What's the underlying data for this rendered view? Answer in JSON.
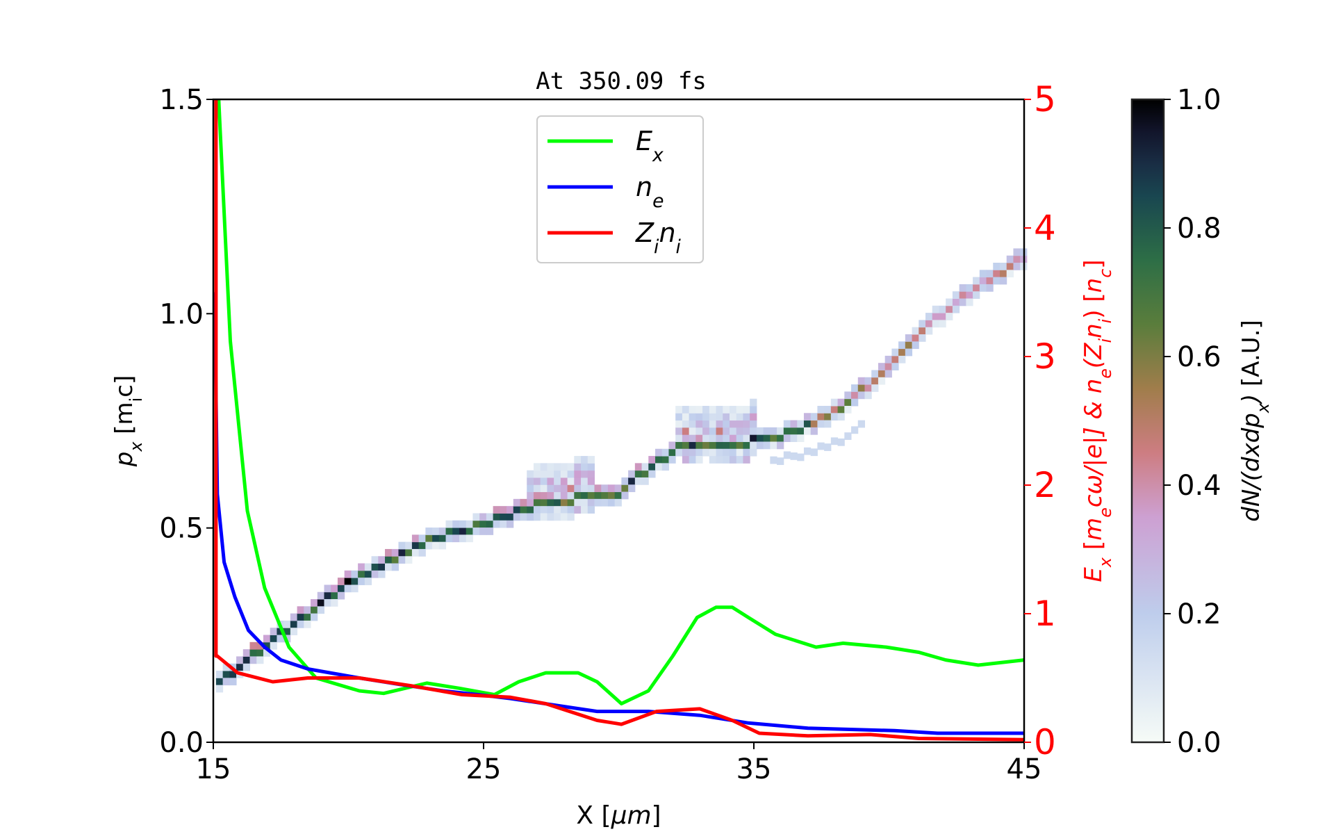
{
  "chart_data": {
    "type": "heatmap",
    "title": "At 350.09 fs",
    "xlabel": [
      {
        "t": "X  [",
        "i": false
      },
      {
        "t": "μm",
        "i": true
      },
      {
        "t": "]",
        "i": false
      }
    ],
    "ylabel": [
      {
        "t": "p",
        "i": true
      },
      {
        "t": "x",
        "i": true,
        "sub": true
      },
      {
        "t": "  [m"
      },
      {
        "t": "i",
        "sub": true
      },
      {
        "t": "c]"
      }
    ],
    "y2label": [
      {
        "t": "E",
        "i": true
      },
      {
        "t": "x",
        "i": true,
        "sub": true
      },
      {
        "t": "  ["
      },
      {
        "t": "m",
        "i": true
      },
      {
        "t": "e",
        "i": true,
        "sub": true
      },
      {
        "t": "cω/|e|]  &  ",
        "i": true
      },
      {
        "t": "n",
        "i": true
      },
      {
        "t": "e",
        "i": true,
        "sub": true
      },
      {
        "t": "(",
        "i": true
      },
      {
        "t": "Z",
        "i": true
      },
      {
        "t": "i",
        "i": true,
        "sub": true
      },
      {
        "t": "n",
        "i": true
      },
      {
        "t": "i",
        "i": true,
        "sub": true
      },
      {
        "t": ")  [",
        "i": false
      },
      {
        "t": "n",
        "i": true
      },
      {
        "t": "c",
        "i": true,
        "sub": true
      },
      {
        "t": "]"
      }
    ],
    "colorbar_label": [
      {
        "t": "dN/(dxdp",
        "i": true
      },
      {
        "t": "x",
        "i": true,
        "sub": true
      },
      {
        "t": ")",
        "i": true
      },
      {
        "t": "  [A.U.]"
      }
    ],
    "xlim": [
      15,
      45
    ],
    "ylim": [
      0,
      1.5
    ],
    "y2lim": [
      0,
      5
    ],
    "clim": [
      0,
      1
    ],
    "xticks": [
      "15",
      "25",
      "35",
      "45"
    ],
    "yticks": [
      "0.0",
      "0.5",
      "1.0",
      "1.5"
    ],
    "y2ticks": [
      "0",
      "1",
      "2",
      "3",
      "4",
      "5"
    ],
    "cticks": [
      "0.0",
      "0.2",
      "0.4",
      "0.6",
      "0.8",
      "1.0"
    ],
    "colormap": "cubehelix_r",
    "grid": false,
    "legend_position": "top-center",
    "axis2_color": "#ff0000",
    "phase_space_ridge": {
      "x": [
        15.15,
        17.8,
        20.4,
        22.9,
        25.4,
        27.3,
        28.5,
        29.8,
        31.1,
        32.3,
        33.6,
        34.5,
        35.5,
        36.8,
        38.6,
        40.5,
        42.4,
        44.9
      ],
      "px": [
        0.13,
        0.26,
        0.38,
        0.46,
        0.51,
        0.55,
        0.56,
        0.56,
        0.63,
        0.68,
        0.69,
        0.69,
        0.7,
        0.72,
        0.79,
        0.9,
        1.02,
        1.12
      ],
      "intensity": [
        1.0,
        1.0,
        0.95,
        0.9,
        0.9,
        0.85,
        0.8,
        0.85,
        0.9,
        0.85,
        0.85,
        0.9,
        0.9,
        0.8,
        0.55,
        0.5,
        0.45,
        0.4
      ]
    },
    "series": [
      {
        "name": "E_x",
        "label": [
          {
            "t": "E",
            "i": true
          },
          {
            "t": "x",
            "i": true,
            "sub": true
          }
        ],
        "color": "#00ff00",
        "axis": "right",
        "x": [
          15.2,
          15.25,
          15.63,
          16.26,
          16.9,
          17.8,
          18.8,
          20.4,
          21.3,
          22.9,
          24.1,
          25.4,
          26.3,
          27.3,
          28.5,
          29.2,
          30.1,
          31.1,
          32.0,
          32.9,
          33.6,
          34.2,
          34.8,
          35.8,
          37.3,
          38.3,
          39.9,
          41.1,
          42.1,
          43.3,
          45.0
        ],
        "y": [
          5.0,
          4.78,
          3.12,
          1.8,
          1.2,
          0.74,
          0.5,
          0.4,
          0.38,
          0.46,
          0.42,
          0.37,
          0.47,
          0.54,
          0.54,
          0.47,
          0.3,
          0.4,
          0.67,
          0.97,
          1.05,
          1.05,
          0.97,
          0.84,
          0.74,
          0.77,
          0.74,
          0.7,
          0.64,
          0.6,
          0.64
        ]
      },
      {
        "name": "n_e",
        "label": [
          {
            "t": "n",
            "i": true
          },
          {
            "t": "e",
            "i": true,
            "sub": true
          }
        ],
        "color": "#0000ff",
        "axis": "right",
        "x": [
          15.05,
          15.15,
          15.4,
          15.8,
          16.3,
          16.9,
          17.5,
          18.5,
          20.4,
          21.9,
          23.5,
          24.8,
          26.0,
          27.6,
          29.2,
          31.1,
          33.0,
          34.8,
          37.0,
          40.2,
          41.8,
          45.0
        ],
        "y": [
          3.5,
          1.93,
          1.4,
          1.13,
          0.87,
          0.74,
          0.64,
          0.57,
          0.5,
          0.45,
          0.4,
          0.37,
          0.34,
          0.29,
          0.24,
          0.24,
          0.21,
          0.15,
          0.11,
          0.09,
          0.07,
          0.07
        ]
      },
      {
        "name": "Z_i n_i",
        "label": [
          {
            "t": "Z",
            "i": true
          },
          {
            "t": "i",
            "i": true,
            "sub": true
          },
          {
            "t": "n",
            "i": true
          },
          {
            "t": "i",
            "i": true,
            "sub": true
          }
        ],
        "color": "#ff0000",
        "axis": "right",
        "x": [
          15.1,
          15.1,
          15.15,
          15.9,
          17.2,
          18.5,
          20.4,
          22.3,
          24.2,
          26.0,
          27.3,
          29.2,
          30.1,
          31.4,
          33.0,
          34.2,
          35.2,
          37.0,
          39.3,
          41.1,
          45.0
        ],
        "y": [
          5.0,
          0.67,
          0.67,
          0.54,
          0.47,
          0.5,
          0.5,
          0.44,
          0.37,
          0.35,
          0.3,
          0.17,
          0.14,
          0.24,
          0.26,
          0.17,
          0.07,
          0.05,
          0.06,
          0.03,
          0.02
        ]
      }
    ]
  }
}
